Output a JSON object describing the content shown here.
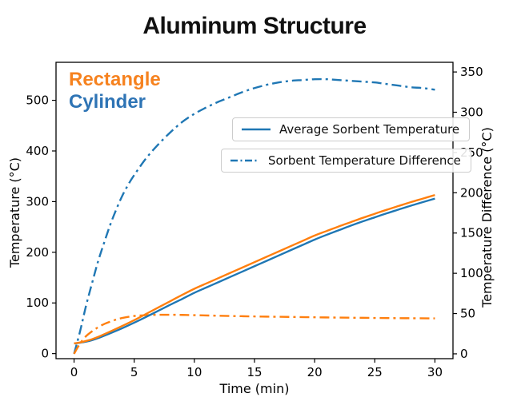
{
  "title": "Aluminum Structure",
  "annotations": [
    {
      "text": "Rectangle",
      "color": "#f6821f"
    },
    {
      "text": "Cylinder",
      "color": "#2e74b5"
    }
  ],
  "legends": [
    {
      "label": "Average Sorbent Temperature",
      "line_style": "solid",
      "color": "#1f77b4"
    },
    {
      "label": "Sorbent Temperature Difference",
      "line_style": "dashdot",
      "color": "#1f77b4"
    }
  ],
  "chart_data": {
    "type": "line",
    "title": "Aluminum Structure",
    "xlabel": "Time (min)",
    "ylabel_left": "Temperature (°C)",
    "ylabel_right": "Temperature Difference (°C)",
    "grid": false,
    "legend_position": "center-right, two stacked boxes",
    "x_ticks": [
      0,
      5,
      10,
      15,
      20,
      25,
      30
    ],
    "y_left_ticks": [
      0,
      100,
      200,
      300,
      400,
      500
    ],
    "y_right_ticks": [
      0,
      50,
      100,
      150,
      200,
      250,
      300,
      350
    ],
    "xlim": [
      -1.5,
      31.5
    ],
    "ylim_left": [
      -10,
      575
    ],
    "ylim_right": [
      -6,
      362
    ],
    "series": [
      {
        "id": "cylinder_temp_difference",
        "name": "Sorbent Temperature Difference",
        "group": "Cylinder",
        "axis": "right",
        "style": "dashdot",
        "color": "#1f77b4",
        "points": [
          [
            0,
            0
          ],
          [
            0.5,
            28
          ],
          [
            1,
            60
          ],
          [
            1.5,
            88
          ],
          [
            2,
            115
          ],
          [
            2.5,
            138
          ],
          [
            3,
            160
          ],
          [
            3.5,
            179
          ],
          [
            4,
            196
          ],
          [
            4.5,
            210
          ],
          [
            5,
            222
          ],
          [
            6,
            243
          ],
          [
            7,
            260
          ],
          [
            8,
            275
          ],
          [
            9,
            288
          ],
          [
            10,
            298
          ],
          [
            11,
            306
          ],
          [
            12,
            313
          ],
          [
            13,
            319
          ],
          [
            14,
            325
          ],
          [
            15,
            330
          ],
          [
            16,
            334
          ],
          [
            17,
            337
          ],
          [
            18,
            339
          ],
          [
            19,
            340
          ],
          [
            20,
            341
          ],
          [
            21,
            341
          ],
          [
            22,
            340
          ],
          [
            23,
            339
          ],
          [
            24,
            338
          ],
          [
            25,
            337
          ],
          [
            26,
            335
          ],
          [
            27,
            333
          ],
          [
            28,
            331
          ],
          [
            29,
            330
          ],
          [
            30,
            328
          ]
        ]
      },
      {
        "id": "rectangle_temp_difference",
        "name": "Sorbent Temperature Difference",
        "group": "Rectangle",
        "axis": "right",
        "style": "dashdot",
        "color": "#ff7f0e",
        "points": [
          [
            0,
            0
          ],
          [
            0.3,
            8
          ],
          [
            0.6,
            15
          ],
          [
            1,
            22
          ],
          [
            1.5,
            28
          ],
          [
            2,
            33
          ],
          [
            2.5,
            37
          ],
          [
            3,
            40
          ],
          [
            3.5,
            42.5
          ],
          [
            4,
            44.5
          ],
          [
            5,
            47
          ],
          [
            6,
            48
          ],
          [
            7,
            48.5
          ],
          [
            8,
            48.5
          ],
          [
            9,
            48.3
          ],
          [
            10,
            48
          ],
          [
            12,
            47.3
          ],
          [
            14,
            46.7
          ],
          [
            16,
            46.2
          ],
          [
            18,
            45.8
          ],
          [
            20,
            45.4
          ],
          [
            22,
            45
          ],
          [
            24,
            44.7
          ],
          [
            26,
            44.4
          ],
          [
            28,
            44.2
          ],
          [
            30,
            44
          ]
        ]
      },
      {
        "id": "cylinder_average_temperature",
        "name": "Average Sorbent Temperature",
        "group": "Cylinder",
        "axis": "left",
        "style": "solid",
        "color": "#1f77b4",
        "points": [
          [
            0,
            20
          ],
          [
            0.5,
            21.5
          ],
          [
            1,
            23.5
          ],
          [
            1.5,
            26.5
          ],
          [
            2,
            30.5
          ],
          [
            3,
            40
          ],
          [
            4,
            50
          ],
          [
            5,
            61
          ],
          [
            6,
            72.5
          ],
          [
            7,
            84.5
          ],
          [
            8,
            96.5
          ],
          [
            9,
            108
          ],
          [
            10,
            120
          ],
          [
            11,
            130.5
          ],
          [
            12,
            141
          ],
          [
            13,
            151.5
          ],
          [
            14,
            162
          ],
          [
            15,
            172.5
          ],
          [
            16,
            183
          ],
          [
            17,
            193.5
          ],
          [
            18,
            204
          ],
          [
            19,
            214.5
          ],
          [
            20,
            225
          ],
          [
            21,
            234.5
          ],
          [
            22,
            243.5
          ],
          [
            23,
            252.5
          ],
          [
            24,
            261
          ],
          [
            25,
            269
          ],
          [
            26,
            277
          ],
          [
            27,
            284.5
          ],
          [
            28,
            292
          ],
          [
            29,
            299
          ],
          [
            30,
            306
          ]
        ]
      },
      {
        "id": "rectangle_average_temperature",
        "name": "Average Sorbent Temperature",
        "group": "Rectangle",
        "axis": "left",
        "style": "solid",
        "color": "#ff7f0e",
        "points": [
          [
            0,
            20
          ],
          [
            0.5,
            22
          ],
          [
            1,
            25
          ],
          [
            1.5,
            28.5
          ],
          [
            2,
            33
          ],
          [
            3,
            43.5
          ],
          [
            4,
            54.5
          ],
          [
            5,
            66
          ],
          [
            6,
            78.5
          ],
          [
            7,
            91
          ],
          [
            8,
            103.5
          ],
          [
            9,
            116
          ],
          [
            10,
            128
          ],
          [
            11,
            138.5
          ],
          [
            12,
            149
          ],
          [
            13,
            159.5
          ],
          [
            14,
            170
          ],
          [
            15,
            180.5
          ],
          [
            16,
            191
          ],
          [
            17,
            201.5
          ],
          [
            18,
            212
          ],
          [
            19,
            222.5
          ],
          [
            20,
            233
          ],
          [
            21,
            242
          ],
          [
            22,
            251
          ],
          [
            23,
            259.5
          ],
          [
            24,
            268
          ],
          [
            25,
            276
          ],
          [
            26,
            284
          ],
          [
            27,
            291.5
          ],
          [
            28,
            299
          ],
          [
            29,
            306
          ],
          [
            30,
            313
          ]
        ]
      }
    ]
  }
}
